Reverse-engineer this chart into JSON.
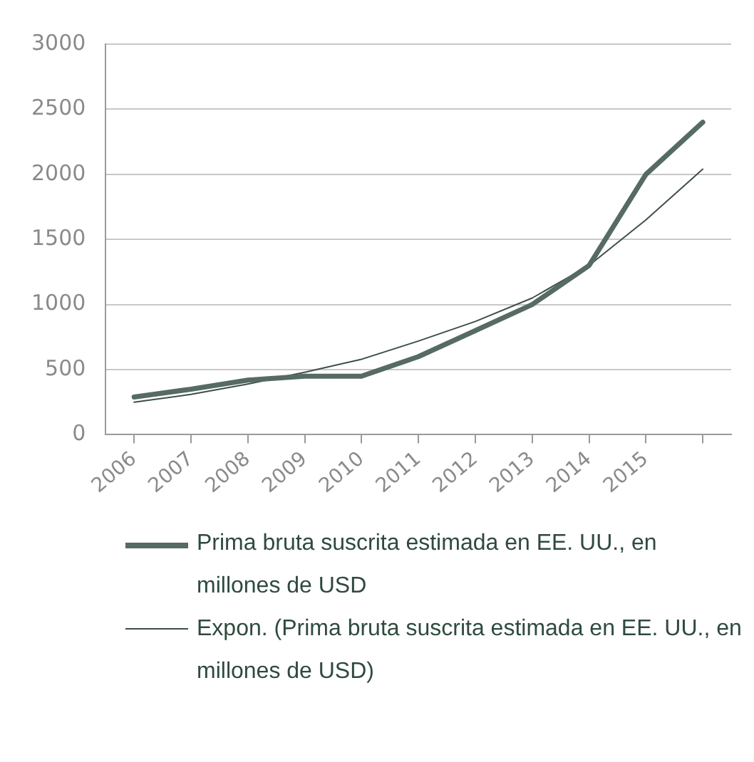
{
  "chart_data": {
    "type": "line",
    "categories": [
      "2006",
      "2007",
      "2008",
      "2009",
      "2010",
      "2011",
      "2012",
      "2013",
      "2014",
      "2015",
      null
    ],
    "series": [
      {
        "name": "Prima bruta suscrita estimada en EE. UU., en millones de USD",
        "color": "#566b62",
        "values": [
          290,
          350,
          420,
          450,
          450,
          600,
          800,
          1000,
          1300,
          2000,
          2400
        ]
      },
      {
        "name": "Expon. (Prima bruta suscrita estimada en EE. UU., en millones de USD)",
        "color": "#3d4f47",
        "values": [
          250,
          310,
          390,
          480,
          580,
          720,
          870,
          1050,
          1300,
          1650,
          2040
        ]
      }
    ],
    "ylim": [
      0,
      3000
    ],
    "yticks": [
      0,
      500,
      1000,
      1500,
      2000,
      2500,
      3000
    ],
    "grid": "y",
    "legend": "bottom",
    "marker": "none",
    "line_style": "solid"
  }
}
